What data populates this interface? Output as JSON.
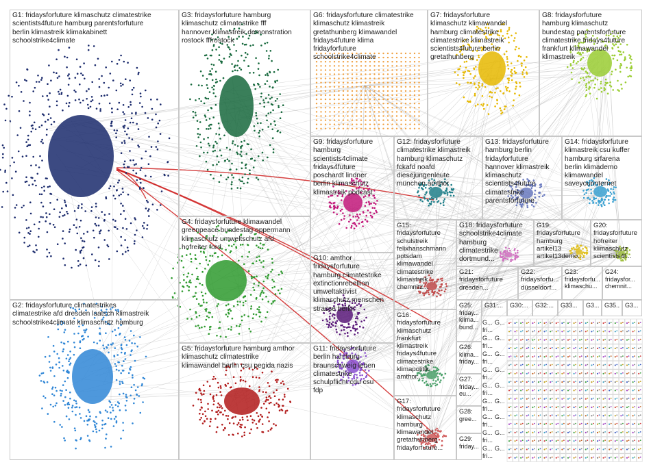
{
  "groups": [
    {
      "id": "G1",
      "text": "G1: fridaysforfuture klimaschutz climatestrike\nscientists4future hamburg parentsforfuture\nberlin klimastreik klimakabinett\nschoolstrike4climate",
      "color": "#1a2a6c"
    },
    {
      "id": "G2",
      "text": "G2: fridaysforfuture climatestrikes\nclimatestrike afd dresden laatsch klimastreik\nschoolstrike4climate klimaschutz hamburg",
      "color": "#2f86d6"
    },
    {
      "id": "G3",
      "text": "G3: fridaysforfuture hamburg\nklimaschutz climatestrike fff\nhannover klimastreik demonstration\nrostock fffrostock",
      "color": "#17693d"
    },
    {
      "id": "G4",
      "text": "G4: fridaysforfuture klimawandel\ngreenpeace bundestag oppermann\nklimaschutz umweltschutz afd\nhofreiter ford",
      "color": "#2e9a2e"
    },
    {
      "id": "G5",
      "text": "G5: fridaysforfuture hamburg amthor\nklimaschutz climatestrike\nklimawandel berlin csu pegida nazis",
      "color": "#b11a1a"
    },
    {
      "id": "G6",
      "text": "G6: fridaysforfuture climatestrike\nklimaschutz klimastreik\ngretathunberg klimawandel\nfridays4future klima\nfridayforfuture\nschoolstrike4climate",
      "color": "#f0a040"
    },
    {
      "id": "G7",
      "text": "G7: fridaysforfuture\nklimaschutz klimawandel\nhamburg climatestrike\nclimatestrike klimastreik\nscientists4future berlin\ngretathunberg",
      "color": "#e6b800"
    },
    {
      "id": "G8",
      "text": "G8: fridaysforfuture\nhamburg klimaschutz\nbundestag parentsforfuture\nclimatestrike fridays4future\nfrankfurt klimawandel\nklimastreik",
      "color": "#9acd32"
    },
    {
      "id": "G9",
      "text": "G9: fridaysforfuture\nhamburg\nscientists4climate\nfridays4future\nposchardt lindner\nberlin klimaschutz\nklimastreik podcast",
      "color": "#c2187a"
    },
    {
      "id": "G10",
      "text": "G10: amthor\nfridaysforfuture\nhamburg climatestrike\nextinctionrebellion\numweltaktivist\nklimaschutz menschen\nstrasse berlin",
      "color": "#5a1a7a"
    },
    {
      "id": "G11",
      "text": "G11: fridaysforfuture\nberlin hamburg\nbraunschweig leben\nclimatestrike\nschulpflicht cdu csu\nfdp",
      "color": "#8a4fd0"
    },
    {
      "id": "G12",
      "text": "G12: fridaysforfuture\nclimatestrike klimastreik\nhamburg klimaschutz\nfckafd noafd\ndiesejungenleute\nmünchen amthor",
      "color": "#1f7f8a"
    },
    {
      "id": "G13",
      "text": "G13: fridaysforfuture\nhamburg berlin\nfridayforfuture\nhannover klimastreik\nklimaschutz\nscientists4future\nclimatestrike\nparentsforfuture",
      "color": "#6a7abf"
    },
    {
      "id": "G14",
      "text": "G14: fridaysforfuture\nklimastreik csu kuffer\nhamburg srfarena\nberlin klimademo\nklimawandel\nsaveyourinternet",
      "color": "#3aa0d0"
    },
    {
      "id": "G15",
      "text": "G15:\nfridaysforfuture\nschulstreik\nfelixhanschmann\npotsdam\nklimawandel\nclimatestrike\nklimastreik\nchemnitz...",
      "color": "#c04a4a"
    },
    {
      "id": "G16",
      "text": "G16:\nfridaysforfuture\nklimaschutz\nfrankfurt\nklimastreik\nfridays4future\nclimatestrike\nklimapolitik\namthor...",
      "color": "#4aa06a"
    },
    {
      "id": "G17",
      "text": "G17:\nfridaysforfuture\nklimaschutz\nhamburg\nklimawandel\ngretathunberg\nfridayforfuture...",
      "color": "#d05a5a"
    },
    {
      "id": "G18",
      "text": "G18: fridaysforfuture\nschoolstrike4climate\nhamburg\nclimatestrike\ndortmund...",
      "color": "#d070c0"
    },
    {
      "id": "G19",
      "text": "G19:\nfridaysforfuture\nhamburg\nartikel13\nartikel13demo...",
      "color": "#e0c020"
    },
    {
      "id": "G20",
      "text": "G20:\nfridaysforfuture\nhofreiter\nklimaschutz\nscientists4f...",
      "color": "#a0c040"
    },
    {
      "id": "G21",
      "text": "G21:\nfridaysforfuture\ndresden...",
      "color": "#c060c0"
    },
    {
      "id": "G22",
      "text": "G22:\nfridaysforfu...\ndüsseldorf...",
      "color": "#e07070"
    },
    {
      "id": "G23",
      "text": "G23:\nfridaysforfu...\nklimaschu...",
      "color": "#5070c0"
    },
    {
      "id": "G24",
      "text": "G24:\nfridaysfor...\nchemnit...",
      "color": "#40a0a0"
    },
    {
      "id": "G25",
      "text": "G25:\nfriday...\nklima...\nbund...",
      "color": "#7070a0"
    },
    {
      "id": "G26",
      "text": "G26:\nklima...\nfriday...",
      "color": "#60a060"
    },
    {
      "id": "G27",
      "text": "G27:\nfriday...\neu...",
      "color": "#a06060"
    },
    {
      "id": "G28",
      "text": "G28:\ngree...",
      "color": "#6090c0"
    },
    {
      "id": "G29",
      "text": "G29:\nfriday...",
      "color": "#c09040"
    },
    {
      "id": "G30",
      "text": "G30:...",
      "color": "#888888"
    },
    {
      "id": "G31",
      "text": "G31:...",
      "color": "#888888"
    },
    {
      "id": "G32",
      "text": "G32:...",
      "color": "#888888"
    },
    {
      "id": "G33",
      "text": "G33...",
      "color": "#888888"
    },
    {
      "id": "G34",
      "text": "G3...",
      "color": "#888888"
    },
    {
      "id": "G35",
      "text": "G35...",
      "color": "#888888"
    },
    {
      "id": "G36",
      "text": "G3...",
      "color": "#888888"
    }
  ],
  "tiny_labels": {
    "col1": "G...",
    "col2": "fri...",
    "col3": "G..."
  },
  "edge_color": "#9a9a9a",
  "highlight_edge_color": "#cc1111"
}
